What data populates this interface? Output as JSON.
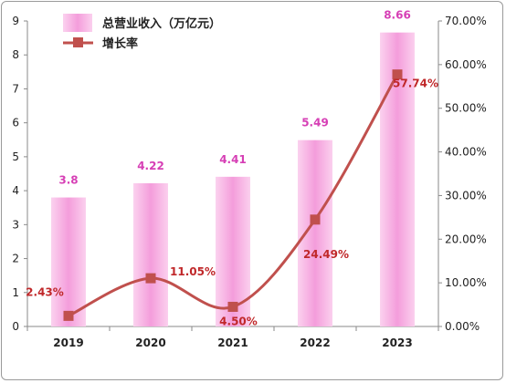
{
  "chart_data": {
    "type": "bar",
    "categories": [
      "2019",
      "2020",
      "2021",
      "2022",
      "2023"
    ],
    "series": [
      {
        "name": "总营业收入（万亿元）",
        "type": "bar",
        "axis": "left",
        "values": [
          3.8,
          4.22,
          4.41,
          5.49,
          8.66
        ],
        "labels": [
          "3.8",
          "4.22",
          "4.41",
          "5.49",
          "8.66"
        ],
        "color": "#f7a8e2"
      },
      {
        "name": "增长率",
        "type": "line",
        "axis": "right",
        "values": [
          2.43,
          11.05,
          4.5,
          24.49,
          57.74
        ],
        "labels": [
          "2.43%",
          "11.05%",
          "4.50%",
          "24.49%",
          "57.74%"
        ],
        "color": "#c0504d"
      }
    ],
    "y_left": {
      "min": 0,
      "max": 9,
      "ticks": [
        "0",
        "1",
        "2",
        "3",
        "4",
        "5",
        "6",
        "7",
        "8",
        "9"
      ]
    },
    "y_right": {
      "min": 0,
      "max": 70,
      "ticks": [
        "0.00%",
        "10.00%",
        "20.00%",
        "30.00%",
        "40.00%",
        "50.00%",
        "60.00%",
        "70.00%"
      ]
    },
    "grid": false,
    "legend": "top-left"
  }
}
